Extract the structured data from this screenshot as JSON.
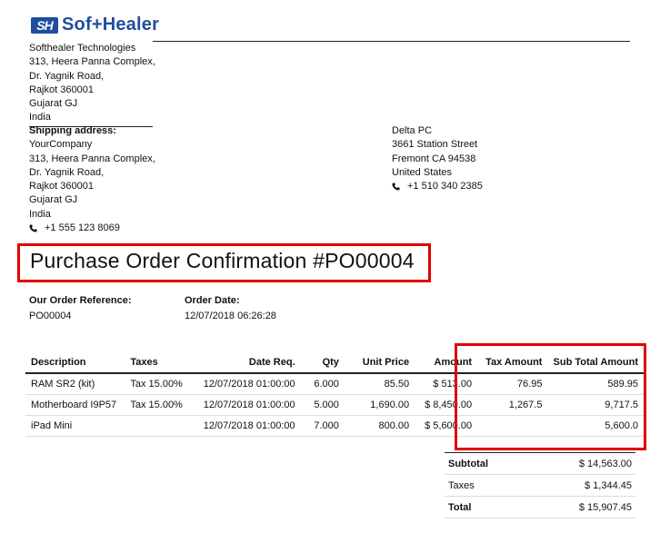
{
  "company": {
    "logo_mark": "SH",
    "logo_text": "Sof+Healer",
    "lines": [
      "Softhealer Technologies",
      "313, Heera Panna Complex,",
      "Dr. Yagnik Road,",
      "Rajkot 360001",
      "Gujarat GJ",
      "India"
    ]
  },
  "shipping": {
    "label": "Shipping address:",
    "lines": [
      "YourCompany",
      "313, Heera Panna Complex,",
      "Dr. Yagnik Road,",
      "Rajkot 360001",
      "Gujarat GJ",
      "India"
    ],
    "phone": "+1 555 123 8069"
  },
  "vendor": {
    "lines": [
      "Delta PC",
      "3661 Station Street",
      "Fremont CA 94538",
      "United States"
    ],
    "phone": "+1 510 340 2385"
  },
  "title": "Purchase Order Confirmation #PO00004",
  "order_ref": {
    "label": "Our Order Reference:",
    "value": "PO00004"
  },
  "order_date": {
    "label": "Order Date:",
    "value": "12/07/2018 06:26:28"
  },
  "table": {
    "headers": [
      "Description",
      "Taxes",
      "Date Req.",
      "Qty",
      "Unit Price",
      "Amount",
      "Tax Amount",
      "Sub Total Amount"
    ],
    "rows": [
      [
        "RAM SR2 (kit)",
        "Tax 15.00%",
        "12/07/2018 01:00:00",
        "6.000",
        "85.50",
        "$ 513.00",
        "76.95",
        "589.95"
      ],
      [
        "Motherboard I9P57",
        "Tax 15.00%",
        "12/07/2018 01:00:00",
        "5.000",
        "1,690.00",
        "$ 8,450.00",
        "1,267.5",
        "9,717.5"
      ],
      [
        "iPad Mini",
        "",
        "12/07/2018 01:00:00",
        "7.000",
        "800.00",
        "$ 5,600.00",
        "",
        "5,600.0"
      ]
    ]
  },
  "totals": {
    "subtotal_label": "Subtotal",
    "subtotal": "$ 14,563.00",
    "taxes_label": "Taxes",
    "taxes": "$ 1,344.45",
    "total_label": "Total",
    "total": "$ 15,907.45"
  },
  "colors": {
    "brand": "#1f4e9b",
    "highlight": "#e00000"
  }
}
